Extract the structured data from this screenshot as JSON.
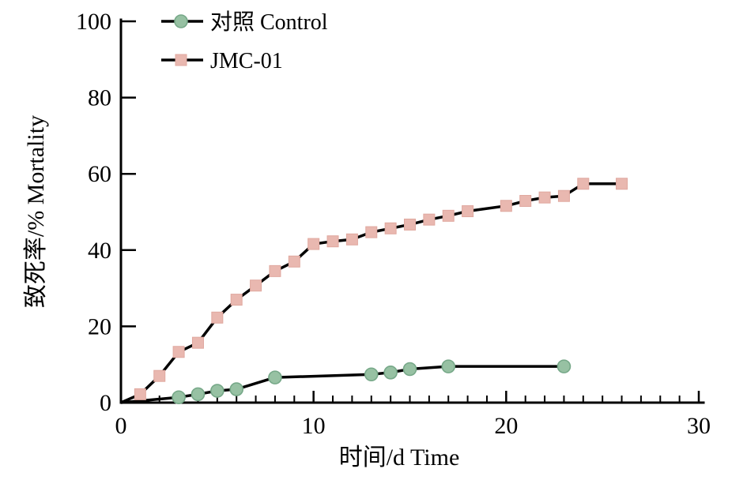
{
  "figure": {
    "background": "#ffffff",
    "axis_color": "#000000"
  },
  "chart_data": {
    "type": "line",
    "title": "",
    "xlabel": "时间/d Time",
    "ylabel": "致死率/% Mortality",
    "xlim": [
      0,
      30
    ],
    "ylim": [
      0,
      100
    ],
    "x_major_ticks": [
      0,
      10,
      20,
      30
    ],
    "x_minor_tick_step": 1,
    "y_major_ticks": [
      0,
      20,
      40,
      60,
      80,
      100
    ],
    "grid": false,
    "legend_position": "top-left-inside",
    "line_color": "#000000",
    "series": [
      {
        "id": "control",
        "name": "对照 Control",
        "marker": "circle",
        "marker_fill": "#97c1a3",
        "marker_stroke": "#76a888",
        "line_origin": [
          0,
          0
        ],
        "points": [
          [
            3,
            1.4
          ],
          [
            4,
            2.2
          ],
          [
            5,
            3.1
          ],
          [
            6,
            3.5
          ],
          [
            8,
            6.6
          ],
          [
            13,
            7.4
          ],
          [
            14,
            7.9
          ],
          [
            15,
            8.8
          ],
          [
            17,
            9.5
          ],
          [
            23,
            9.5
          ]
        ]
      },
      {
        "id": "jmc-01",
        "name": "JMC-01",
        "marker": "square",
        "marker_fill": "#e9b8b0",
        "marker_stroke": "#e0a89f",
        "line_origin": [
          0,
          0
        ],
        "points": [
          [
            1,
            2.2
          ],
          [
            2,
            7.0
          ],
          [
            3,
            13.3
          ],
          [
            4,
            15.7
          ],
          [
            5,
            22.3
          ],
          [
            6,
            27.0
          ],
          [
            7,
            30.7
          ],
          [
            8,
            34.5
          ],
          [
            9,
            37.0
          ],
          [
            10,
            41.6
          ],
          [
            11,
            42.3
          ],
          [
            12,
            42.8
          ],
          [
            13,
            44.7
          ],
          [
            14,
            45.7
          ],
          [
            15,
            46.7
          ],
          [
            16,
            48.0
          ],
          [
            17,
            49.0
          ],
          [
            18,
            50.2
          ],
          [
            20,
            51.6
          ],
          [
            21,
            52.9
          ],
          [
            22,
            53.8
          ],
          [
            23,
            54.2
          ],
          [
            24,
            57.4
          ],
          [
            26,
            57.4
          ]
        ]
      }
    ]
  }
}
